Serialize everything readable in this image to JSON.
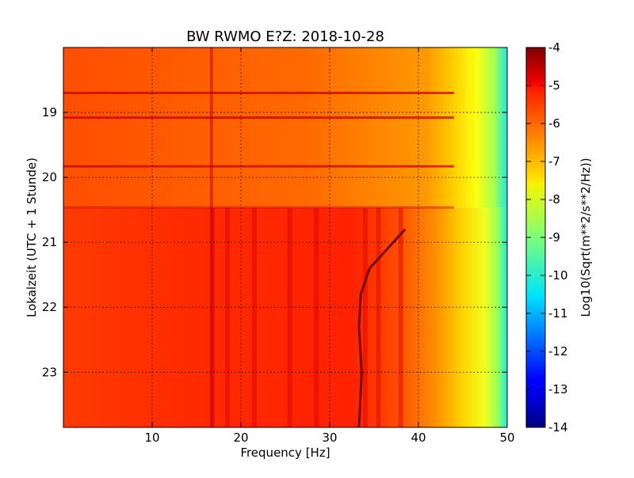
{
  "chart_data": {
    "type": "heatmap",
    "title": "BW RWMO E?Z: 2018-10-28",
    "xlabel": "Frequency [Hz]",
    "ylabel": "Lokalzeit (UTC + 1 Stunde)",
    "xlim": [
      0,
      50
    ],
    "ylim": [
      18.0,
      23.85
    ],
    "y_inverted": true,
    "x_ticks": [
      "10",
      "20",
      "30",
      "40",
      "50"
    ],
    "y_ticks": [
      "19",
      "20",
      "21",
      "22",
      "23"
    ],
    "grid": true,
    "colormap": "jet",
    "colorbar": {
      "label": "Log10(Sqrt(m**2/s**2/Hz))",
      "range": [
        -14,
        -4
      ],
      "ticks": [
        "-4",
        "-5",
        "-6",
        "-7",
        "-8",
        "-9",
        "-10",
        "-11",
        "-12",
        "-13",
        "-14"
      ]
    },
    "features": {
      "horizontal_lines_hours": [
        18.7,
        19.08,
        19.83
      ],
      "quiet_to_noisy_transition_hour": 20.47,
      "drifting_tone": [
        {
          "hour": 20.8,
          "freq": 38.5
        },
        {
          "hour": 21.1,
          "freq": 36.5
        },
        {
          "hour": 21.4,
          "freq": 34.5
        },
        {
          "hour": 21.8,
          "freq": 33.5
        },
        {
          "hour": 22.3,
          "freq": 33.3
        },
        {
          "hour": 23.0,
          "freq": 33.6
        },
        {
          "hour": 23.85,
          "freq": 33.3
        }
      ],
      "vertical_bands_hz": [
        16.8,
        18.5,
        21.5,
        25.5,
        28.5,
        34.0,
        35.5,
        38.0
      ]
    }
  }
}
